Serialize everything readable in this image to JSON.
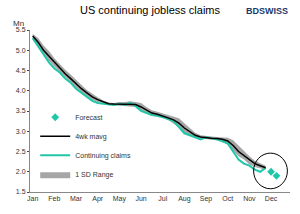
{
  "chart_data": {
    "type": "line",
    "title": "US continuing jobless claims",
    "ylabel": "Mn",
    "annotations": [
      "BDSWISS"
    ],
    "categories": [
      "Jan",
      null,
      null,
      null,
      "Feb",
      null,
      null,
      null,
      "Mar",
      null,
      null,
      null,
      "Apr",
      null,
      null,
      null,
      "May",
      null,
      null,
      null,
      "Jun",
      null,
      null,
      null,
      "Jul",
      null,
      null,
      null,
      "Aug",
      null,
      null,
      null,
      "Sep",
      null,
      null,
      null,
      "Oct",
      null,
      null,
      null,
      "Nov",
      null,
      null,
      null,
      "Dec",
      null,
      null,
      null
    ],
    "series": [
      {
        "name": "1 SD Range",
        "type": "band",
        "color": "#a6a6a6",
        "upper": [
          5.4,
          5.3,
          5.12,
          4.98,
          4.8,
          4.65,
          4.52,
          4.4,
          4.26,
          4.14,
          4.02,
          3.92,
          3.84,
          3.76,
          3.71,
          3.7,
          3.72,
          3.72,
          3.74,
          3.72,
          3.7,
          3.6,
          3.52,
          3.48,
          3.44,
          3.4,
          3.36,
          3.32,
          3.2,
          3.08,
          2.96,
          2.9,
          2.88,
          2.87,
          2.86,
          2.85,
          2.84,
          2.78,
          2.64,
          2.5,
          2.38,
          2.27,
          2.2,
          2.15,
          null,
          null,
          null,
          null
        ],
        "lower": [
          5.28,
          5.1,
          4.9,
          4.74,
          4.6,
          4.46,
          4.34,
          4.22,
          4.08,
          3.97,
          3.88,
          3.78,
          3.72,
          3.68,
          3.65,
          3.64,
          3.63,
          3.62,
          3.61,
          3.6,
          3.5,
          3.44,
          3.38,
          3.36,
          3.33,
          3.28,
          3.2,
          3.1,
          2.96,
          2.88,
          2.84,
          2.82,
          2.8,
          2.79,
          2.78,
          2.75,
          2.66,
          2.52,
          2.38,
          2.3,
          2.18,
          2.12,
          2.08,
          2.05,
          null,
          null,
          null,
          null
        ]
      },
      {
        "name": "Continuing claims",
        "type": "line",
        "color": "#1fc7a8",
        "values": [
          5.3,
          5.1,
          4.9,
          4.7,
          4.55,
          4.45,
          4.3,
          4.2,
          4.05,
          3.95,
          3.85,
          3.75,
          3.7,
          3.68,
          3.67,
          3.65,
          3.68,
          3.65,
          3.7,
          3.62,
          3.5,
          3.45,
          3.4,
          3.38,
          3.35,
          3.3,
          3.25,
          3.1,
          2.95,
          2.9,
          2.85,
          2.8,
          2.85,
          2.82,
          2.8,
          2.75,
          2.7,
          2.5,
          2.3,
          2.2,
          2.15,
          2.05,
          2.0,
          2.1,
          null,
          null,
          null,
          null
        ]
      },
      {
        "name": "4wk mavg",
        "type": "line",
        "color": "#000000",
        "values": [
          5.35,
          5.2,
          5.0,
          4.85,
          4.7,
          4.55,
          4.42,
          4.3,
          4.17,
          4.05,
          3.95,
          3.85,
          3.78,
          3.72,
          3.68,
          3.67,
          3.67,
          3.67,
          3.67,
          3.66,
          3.6,
          3.52,
          3.45,
          3.42,
          3.38,
          3.33,
          3.28,
          3.2,
          3.08,
          2.98,
          2.9,
          2.86,
          2.84,
          2.83,
          2.82,
          2.8,
          2.76,
          2.65,
          2.5,
          2.4,
          2.28,
          2.2,
          2.15,
          2.1,
          null,
          null,
          null,
          null
        ]
      },
      {
        "name": "Forecast",
        "type": "scatter",
        "marker": "diamond",
        "color": "#1fc7a8",
        "values": [
          null,
          null,
          null,
          null,
          null,
          null,
          null,
          null,
          null,
          null,
          null,
          null,
          null,
          null,
          null,
          null,
          null,
          null,
          null,
          null,
          null,
          null,
          null,
          null,
          null,
          null,
          null,
          null,
          null,
          null,
          null,
          null,
          null,
          null,
          null,
          null,
          null,
          null,
          null,
          null,
          null,
          null,
          null,
          null,
          2.0,
          1.9,
          null,
          null
        ]
      }
    ],
    "ylim": [
      1.5,
      5.5
    ],
    "yticks": [
      1.5,
      {
        "value": 2,
        "label": "2.0"
      },
      2.5,
      {
        "value": 3,
        "label": "3.0"
      },
      3.5,
      {
        "value": 4,
        "label": "4.0"
      },
      4.5,
      {
        "value": 5,
        "label": "5.0"
      },
      5.5
    ],
    "grid": false,
    "legend": "lower left"
  }
}
